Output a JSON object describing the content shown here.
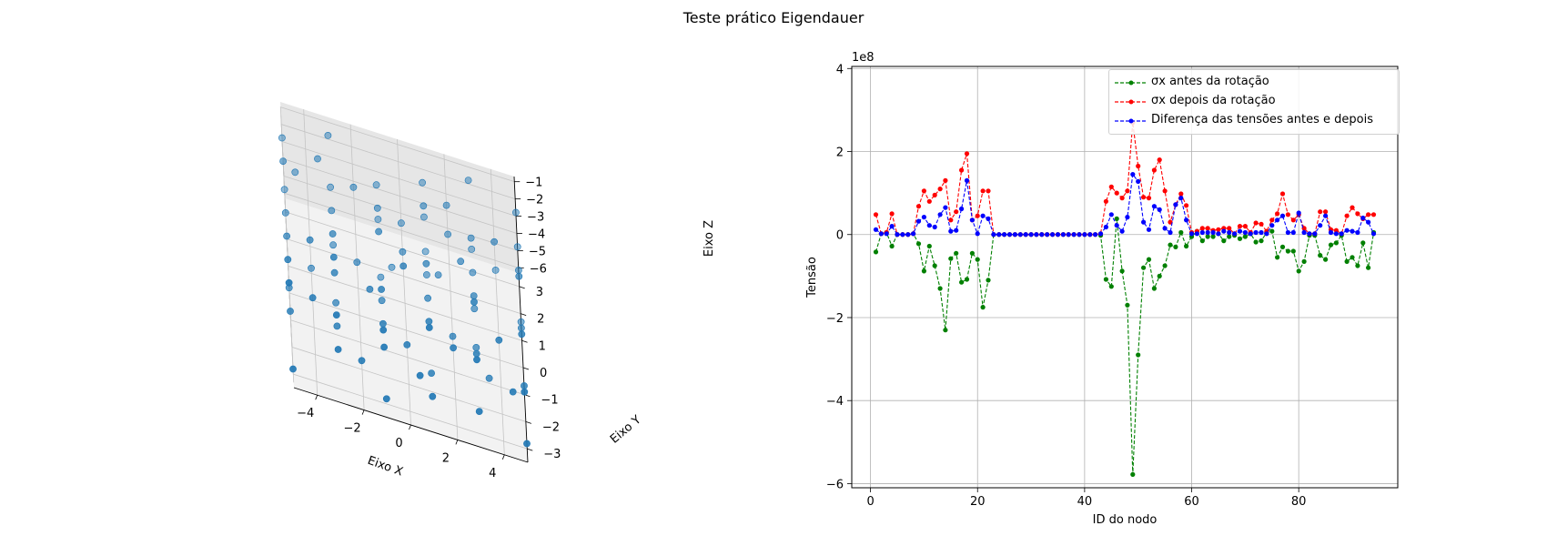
{
  "figure": {
    "suptitle": "Teste prático Eigendauer"
  },
  "chart_data": [
    {
      "type": "scatter3d",
      "xlabel": "Eixo X",
      "ylabel": "Eixo Y",
      "zlabel": "Eixo Z",
      "xticks": [
        -4,
        -2,
        0,
        2,
        4
      ],
      "yticks": [
        -3,
        -2,
        -1,
        0,
        1,
        2,
        3
      ],
      "zticks": [
        -1,
        -2,
        -3,
        -4,
        -5,
        -6
      ],
      "xlim": [
        -5,
        5
      ],
      "ylim": [
        -3.5,
        3.5
      ],
      "zlim": [
        -6.3,
        -0.7
      ],
      "grid": true,
      "point_color": "#1f77b4",
      "points": [
        [
          -5,
          -3,
          -1
        ],
        [
          -5,
          -3,
          -6
        ],
        [
          -5,
          -1.5,
          -2
        ],
        [
          -5,
          -1.5,
          -5
        ],
        [
          -5,
          0,
          -3
        ],
        [
          -5,
          0,
          -6
        ],
        [
          -5,
          1.5,
          -1
        ],
        [
          -5,
          1.5,
          -4
        ],
        [
          -5,
          3,
          -2
        ],
        [
          -5,
          3,
          -5
        ],
        [
          -3,
          -3,
          -2
        ],
        [
          -3,
          -3,
          -4
        ],
        [
          -3,
          -1.5,
          -1
        ],
        [
          -3,
          -1.5,
          -5
        ],
        [
          -3,
          0,
          -2
        ],
        [
          -3,
          0,
          -6
        ],
        [
          -3,
          1.5,
          -3
        ],
        [
          -3,
          1.5,
          -5
        ],
        [
          -3,
          3,
          -1
        ],
        [
          -3,
          3,
          -4
        ],
        [
          -1,
          -3,
          -3
        ],
        [
          -1,
          -3,
          -6
        ],
        [
          -1,
          -1.5,
          -2
        ],
        [
          -1,
          -1.5,
          -4
        ],
        [
          -1,
          0,
          -1
        ],
        [
          -1,
          0,
          -5
        ],
        [
          -1,
          1.5,
          -2
        ],
        [
          -1,
          1.5,
          -6
        ],
        [
          -1,
          3,
          -3
        ],
        [
          -1,
          3,
          -5
        ],
        [
          1,
          -3,
          -1
        ],
        [
          1,
          -3,
          -5
        ],
        [
          1,
          -1.5,
          -3
        ],
        [
          1,
          -1.5,
          -6
        ],
        [
          1,
          0,
          -2
        ],
        [
          1,
          0,
          -4
        ],
        [
          1,
          1.5,
          -1
        ],
        [
          1,
          1.5,
          -5
        ],
        [
          1,
          3,
          -2
        ],
        [
          1,
          3,
          -6
        ],
        [
          3,
          -3,
          -2
        ],
        [
          3,
          -3,
          -5
        ],
        [
          3,
          -1.5,
          -1
        ],
        [
          3,
          -1.5,
          -4
        ],
        [
          3,
          0,
          -3
        ],
        [
          3,
          0,
          -6
        ],
        [
          3,
          1.5,
          -2
        ],
        [
          3,
          1.5,
          -4
        ],
        [
          3,
          3,
          -1
        ],
        [
          3,
          3,
          -5
        ],
        [
          5,
          -3,
          -3
        ],
        [
          5,
          -3,
          -6
        ],
        [
          5,
          -1.5,
          -2
        ],
        [
          5,
          -1.5,
          -5
        ],
        [
          5,
          0,
          -1
        ],
        [
          5,
          0,
          -4
        ],
        [
          5,
          1.5,
          -3
        ],
        [
          5,
          1.5,
          -6
        ],
        [
          5,
          3,
          -2
        ],
        [
          5,
          3,
          -4
        ],
        [
          -4,
          -2,
          -3
        ],
        [
          -2,
          2,
          -2
        ],
        [
          0,
          -2,
          -4
        ],
        [
          2,
          2,
          -3
        ],
        [
          4,
          -2,
          -2
        ],
        [
          0,
          2.5,
          -4
        ],
        [
          -2,
          -2.5,
          -5
        ],
        [
          2,
          -0.5,
          -5
        ],
        [
          4,
          1,
          -1
        ],
        [
          -4,
          1,
          -6
        ],
        [
          0,
          0.8,
          -3
        ],
        [
          2,
          -2.2,
          -3
        ],
        [
          -2,
          0.5,
          -4
        ],
        [
          4,
          2.5,
          -5
        ],
        [
          -4,
          -0.5,
          -2
        ],
        [
          1.5,
          1,
          -4
        ],
        [
          -1.5,
          -1,
          -3
        ],
        [
          3.5,
          -1,
          -6
        ],
        [
          -3.5,
          2,
          -1
        ],
        [
          0.5,
          -3,
          -4
        ],
        [
          2.5,
          0.5,
          -2
        ],
        [
          -0.5,
          2,
          -6
        ],
        [
          4.5,
          -2.5,
          -4
        ],
        [
          -4.5,
          2.5,
          -3
        ],
        [
          1,
          3,
          -4
        ],
        [
          -1,
          -3,
          -2
        ],
        [
          3,
          0.8,
          -5
        ],
        [
          -3,
          -0.8,
          -3
        ],
        [
          0,
          -1,
          -1
        ],
        [
          2,
          1.8,
          -1
        ]
      ]
    },
    {
      "type": "line",
      "xlabel": "ID do nodo",
      "ylabel": "Tensão",
      "y_scale_label": "1e8",
      "xlim": [
        -3.5,
        98.5
      ],
      "ylim": [
        -6.1,
        4.05
      ],
      "xticks": [
        0,
        20,
        40,
        60,
        80
      ],
      "yticks": [
        4,
        2,
        0,
        -2,
        -4,
        -6
      ],
      "grid": true,
      "legend": "top-right",
      "x": [
        1,
        2,
        3,
        4,
        5,
        6,
        7,
        8,
        9,
        10,
        11,
        12,
        13,
        14,
        15,
        16,
        17,
        18,
        19,
        20,
        21,
        22,
        23,
        24,
        25,
        26,
        27,
        28,
        29,
        30,
        31,
        32,
        33,
        34,
        35,
        36,
        37,
        38,
        39,
        40,
        41,
        42,
        43,
        44,
        45,
        46,
        47,
        48,
        49,
        50,
        51,
        52,
        53,
        54,
        55,
        56,
        57,
        58,
        59,
        60,
        61,
        62,
        63,
        64,
        65,
        66,
        67,
        68,
        69,
        70,
        71,
        72,
        73,
        74,
        75,
        76,
        77,
        78,
        79,
        80,
        81,
        82,
        83,
        84,
        85,
        86,
        87,
        88,
        89,
        90,
        91,
        92,
        93,
        94
      ],
      "series": [
        {
          "name": "σx antes da rotação",
          "color": "#008000",
          "values": [
            -0.42,
            0.02,
            0.05,
            -0.28,
            0,
            0,
            0,
            0.02,
            -0.22,
            -0.88,
            -0.28,
            -0.75,
            -1.3,
            -2.3,
            -0.58,
            -0.45,
            -1.15,
            -1.08,
            -0.45,
            -0.6,
            -1.75,
            -1.1,
            0,
            0,
            0,
            0,
            0,
            0,
            0,
            0,
            0,
            0,
            0,
            0,
            0,
            0,
            0,
            0,
            0,
            0,
            0,
            0,
            -0.02,
            -1.08,
            -1.25,
            0.38,
            -0.88,
            -1.7,
            -5.78,
            -2.9,
            -0.8,
            -0.6,
            -1.3,
            -1.0,
            -0.75,
            -0.25,
            -0.3,
            0.05,
            -0.28,
            -0.05,
            0.08,
            -0.15,
            -0.05,
            -0.05,
            0.02,
            -0.15,
            -0.05,
            -0.02,
            -0.1,
            -0.05,
            0.02,
            -0.18,
            -0.15,
            0.05,
            0.08,
            -0.55,
            -0.3,
            -0.4,
            -0.4,
            -0.88,
            -0.65,
            -0.02,
            -0.02,
            -0.5,
            -0.6,
            -0.25,
            -0.2,
            -0.02,
            -0.65,
            -0.55,
            -0.75,
            -0.2,
            -0.8,
            0.05
          ]
        },
        {
          "name": "σx depois da rotação",
          "color": "#ff0000",
          "values": [
            0.48,
            0.02,
            0.05,
            0.5,
            0,
            0,
            0,
            0.02,
            0.68,
            1.05,
            0.8,
            0.95,
            1.1,
            1.3,
            0.35,
            0.55,
            1.55,
            1.95,
            0.35,
            0.45,
            1.05,
            1.05,
            0,
            0,
            0,
            0,
            0,
            0,
            0,
            0,
            0,
            0,
            0,
            0,
            0,
            0,
            0,
            0,
            0,
            0,
            0,
            0,
            0.02,
            0.8,
            1.15,
            1.0,
            0.88,
            1.05,
            2.7,
            1.65,
            0.9,
            0.88,
            1.55,
            1.8,
            1.05,
            0.3,
            0.72,
            0.98,
            0.7,
            0.05,
            0.08,
            0.15,
            0.15,
            0.1,
            0.12,
            0.15,
            0.15,
            0.02,
            0.2,
            0.2,
            0.05,
            0.28,
            0.25,
            0.08,
            0.35,
            0.5,
            0.98,
            0.48,
            0.35,
            0.48,
            0.15,
            0.02,
            0.02,
            0.55,
            0.55,
            0.12,
            0.1,
            0.02,
            0.45,
            0.65,
            0.5,
            0.38,
            0.48,
            0.48
          ]
        },
        {
          "name": "Diferença das tensões antes e depois",
          "color": "#0000ff",
          "values": [
            0.12,
            0.02,
            0.02,
            0.2,
            0,
            0,
            0,
            0.02,
            0.32,
            0.42,
            0.22,
            0.18,
            0.48,
            0.65,
            0.08,
            0.1,
            0.62,
            1.3,
            0.35,
            0.02,
            0.45,
            0.38,
            0,
            0,
            0,
            0,
            0,
            0,
            0,
            0,
            0,
            0,
            0,
            0,
            0,
            0,
            0,
            0,
            0,
            0,
            0,
            0,
            0.02,
            0.18,
            0.48,
            0.22,
            0.08,
            0.42,
            1.45,
            1.28,
            0.3,
            0.12,
            0.68,
            0.6,
            0.15,
            0.05,
            0.72,
            0.88,
            0.35,
            0.02,
            0.02,
            0.05,
            0.05,
            0.05,
            0.02,
            0.08,
            0.05,
            0.02,
            0.08,
            0.05,
            0.02,
            0.05,
            0.05,
            0.02,
            0.22,
            0.35,
            0.45,
            0.05,
            0.05,
            0.52,
            0.05,
            0.02,
            0.02,
            0.22,
            0.45,
            0.05,
            0.02,
            0.02,
            0.1,
            0.08,
            0.05,
            0.4,
            0.3,
            0.02
          ]
        }
      ]
    }
  ]
}
